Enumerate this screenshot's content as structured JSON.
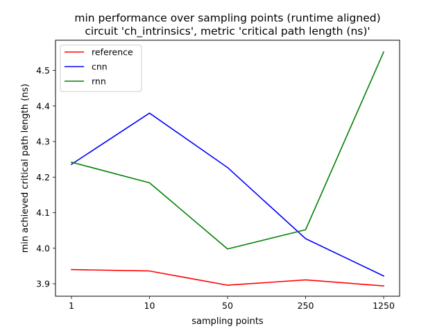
{
  "chart_data": {
    "type": "line",
    "title": "min performance over sampling points (runtime aligned)",
    "subtitle": "circuit 'ch_intrinsics', metric 'critical path length (ns)'",
    "xlabel": "sampling points",
    "ylabel": "min achieved critical path length (ns)",
    "categories": [
      "1",
      "10",
      "50",
      "250",
      "1250"
    ],
    "ylim": [
      3.865,
      4.585
    ],
    "yticks": [
      "3.9",
      "4.0",
      "4.1",
      "4.2",
      "4.3",
      "4.4",
      "4.5"
    ],
    "grid": false,
    "legend_position": "top-left",
    "series": [
      {
        "name": "reference",
        "color": "#ff0000",
        "values": [
          3.94,
          3.936,
          3.896,
          3.911,
          3.894
        ]
      },
      {
        "name": "cnn",
        "color": "#0000ff",
        "values": [
          4.236,
          4.38,
          4.227,
          4.027,
          3.922
        ]
      },
      {
        "name": "rnn",
        "color": "#008000",
        "values": [
          4.242,
          4.184,
          3.998,
          4.052,
          4.552
        ]
      }
    ]
  }
}
